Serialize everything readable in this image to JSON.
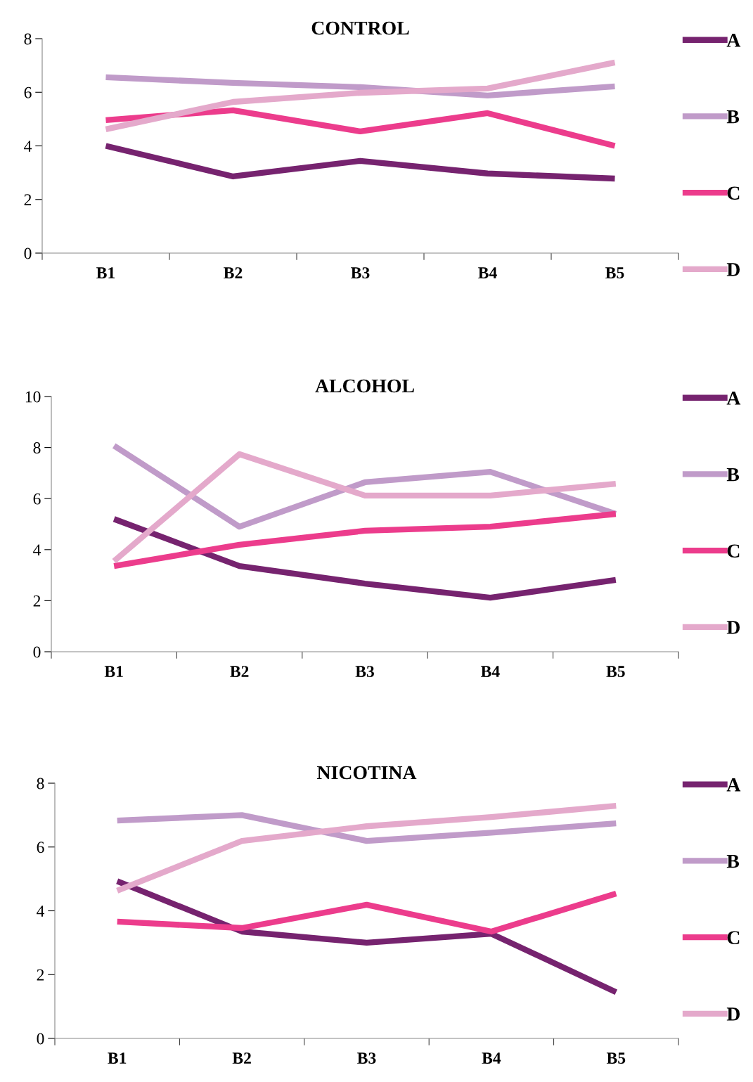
{
  "chart_data": [
    {
      "type": "line",
      "title": "CONTROL",
      "categories": [
        "B1",
        "B2",
        "B3",
        "B4",
        "B5"
      ],
      "ylim": [
        0,
        8
      ],
      "yticks": [
        0,
        2,
        4,
        6,
        8
      ],
      "grid": false,
      "legend": "right",
      "marker": "none",
      "line_style": "solid",
      "series": [
        {
          "name": "A",
          "color": "#76236f",
          "values": [
            4.0,
            2.86,
            3.44,
            2.97,
            2.78
          ]
        },
        {
          "name": "B",
          "color": "#c09bc9",
          "values": [
            6.56,
            6.35,
            6.19,
            5.88,
            6.22
          ]
        },
        {
          "name": "C",
          "color": "#ec3c8c",
          "values": [
            4.96,
            5.33,
            4.54,
            5.22,
            4.0
          ]
        },
        {
          "name": "D",
          "color": "#e4a9cb",
          "values": [
            4.62,
            5.64,
            5.98,
            6.14,
            7.11
          ]
        }
      ]
    },
    {
      "type": "line",
      "title": "ALCOHOL",
      "categories": [
        "B1",
        "B2",
        "B3",
        "B4",
        "B5"
      ],
      "ylim": [
        0,
        10
      ],
      "yticks": [
        0,
        2,
        4,
        6,
        8,
        10
      ],
      "grid": false,
      "legend": "right",
      "marker": "none",
      "line_style": "solid",
      "series": [
        {
          "name": "A",
          "color": "#76236f",
          "values": [
            5.2,
            3.36,
            2.67,
            2.12,
            2.81
          ]
        },
        {
          "name": "B",
          "color": "#c09bc9",
          "values": [
            8.07,
            4.9,
            6.64,
            7.05,
            5.4
          ]
        },
        {
          "name": "C",
          "color": "#ec3c8c",
          "values": [
            3.36,
            4.19,
            4.74,
            4.9,
            5.4
          ]
        },
        {
          "name": "D",
          "color": "#e4a9cb",
          "values": [
            3.55,
            7.74,
            6.12,
            6.12,
            6.58
          ]
        }
      ]
    },
    {
      "type": "line",
      "title": "NICOTINA",
      "categories": [
        "B1",
        "B2",
        "B3",
        "B4",
        "B5"
      ],
      "ylim": [
        0,
        8
      ],
      "yticks": [
        0,
        2,
        4,
        6,
        8
      ],
      "grid": false,
      "legend": "right",
      "marker": "none",
      "line_style": "solid",
      "series": [
        {
          "name": "A",
          "color": "#76236f",
          "values": [
            4.93,
            3.35,
            3.0,
            3.28,
            1.45
          ]
        },
        {
          "name": "B",
          "color": "#c09bc9",
          "values": [
            6.83,
            7.0,
            6.19,
            6.45,
            6.74
          ]
        },
        {
          "name": "C",
          "color": "#ec3c8c",
          "values": [
            3.66,
            3.46,
            4.19,
            3.35,
            4.54
          ]
        },
        {
          "name": "D",
          "color": "#e4a9cb",
          "values": [
            4.63,
            6.19,
            6.65,
            6.94,
            7.29
          ]
        }
      ]
    }
  ]
}
